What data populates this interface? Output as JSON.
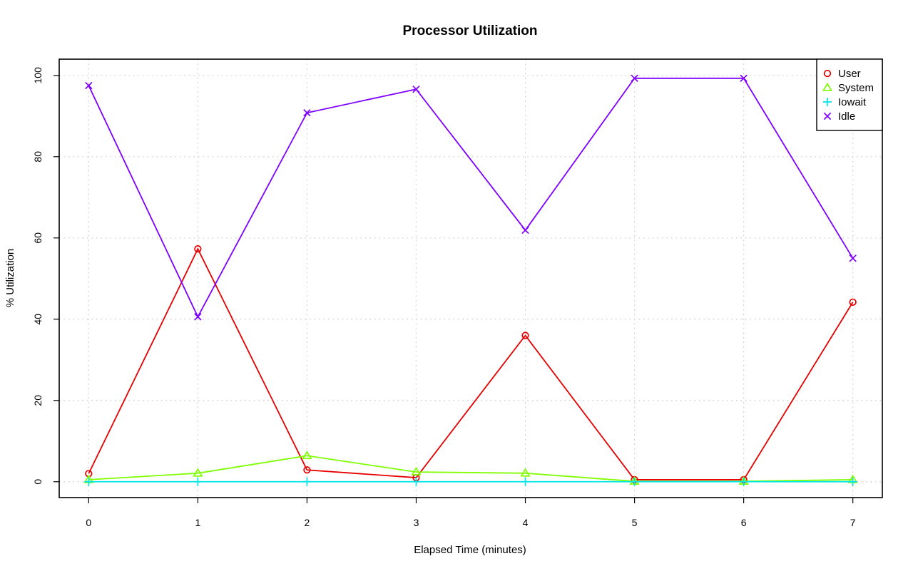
{
  "chart_data": {
    "type": "line",
    "title": "Processor Utilization",
    "xlabel": "Elapsed Time (minutes)",
    "ylabel": "% Utilization",
    "x": [
      0,
      1,
      2,
      3,
      4,
      5,
      6,
      7
    ],
    "xlim": [
      -0.27,
      7.27
    ],
    "ylim": [
      -3.9,
      104
    ],
    "xticks": [
      0,
      1,
      2,
      3,
      4,
      5,
      6,
      7
    ],
    "yticks": [
      0,
      20,
      40,
      60,
      80,
      100
    ],
    "grid": true,
    "legend_position": "top-right",
    "series": [
      {
        "name": "User",
        "color": "#e60000",
        "marker": "circle",
        "values": [
          2.0,
          57.3,
          2.9,
          1.0,
          36.0,
          0.5,
          0.5,
          44.2
        ]
      },
      {
        "name": "System",
        "color": "#7fff00",
        "marker": "triangle",
        "values": [
          0.5,
          2.1,
          6.4,
          2.4,
          2.1,
          0.1,
          0.1,
          0.5
        ]
      },
      {
        "name": "Iowait",
        "color": "#00e5e5",
        "marker": "plus",
        "values": [
          0.0,
          0.0,
          0.0,
          0.0,
          0.0,
          0.0,
          0.0,
          0.0
        ]
      },
      {
        "name": "Idle",
        "color": "#7f00ff",
        "marker": "cross",
        "values": [
          97.5,
          40.6,
          90.8,
          96.6,
          61.9,
          99.3,
          99.3,
          55.0
        ]
      }
    ]
  }
}
